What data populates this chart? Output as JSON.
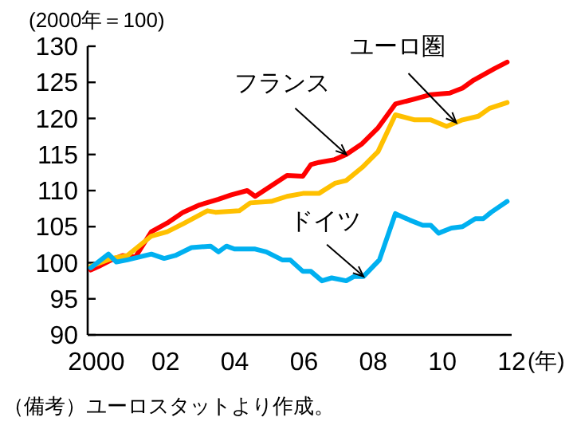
{
  "chart_data": {
    "type": "line",
    "ylabel": "(2000年＝100)",
    "xlabel": "(年)",
    "xlim": [
      1999.75,
      2012.0
    ],
    "xticks": [
      {
        "value": 2000,
        "label": "2000"
      },
      {
        "value": 2002,
        "label": "02"
      },
      {
        "value": 2004,
        "label": "04"
      },
      {
        "value": 2006,
        "label": "06"
      },
      {
        "value": 2008,
        "label": "08"
      },
      {
        "value": 2010,
        "label": "10"
      },
      {
        "value": 2012,
        "label": "12"
      }
    ],
    "ylim": [
      90,
      130
    ],
    "yticks": [
      90,
      95,
      100,
      105,
      110,
      115,
      120,
      125,
      130
    ],
    "grid": false,
    "series": [
      {
        "color": "#ff0000",
        "x": [
          1999.84,
          2000.07,
          2000.44,
          2000.76,
          2001.13,
          2001.59,
          2002.05,
          2002.51,
          2002.98,
          2003.53,
          2003.9,
          2004.36,
          2004.59,
          2005.51,
          2005.97,
          2006.2,
          2006.43,
          2006.89,
          2007.22,
          2007.68,
          2008.14,
          2008.64,
          2009.2,
          2009.66,
          2010.21,
          2010.58,
          2010.9,
          2011.5,
          2011.87
        ],
        "values": [
          99.0,
          99.5,
          100.4,
          101.0,
          100.8,
          104.3,
          105.5,
          107.0,
          108.0,
          108.8,
          109.4,
          110.0,
          109.2,
          112.1,
          112.0,
          113.6,
          113.9,
          114.3,
          115.0,
          116.5,
          118.7,
          122.0,
          122.7,
          123.3,
          123.5,
          124.2,
          125.3,
          126.9,
          127.8
        ]
      },
      {
        "color": "#ffc000",
        "x": [
          1999.84,
          2000.44,
          2000.9,
          2001.59,
          2002.05,
          2002.51,
          2003.21,
          2003.44,
          2004.13,
          2004.45,
          2005.05,
          2005.51,
          2005.97,
          2006.43,
          2006.89,
          2007.22,
          2007.68,
          2008.14,
          2008.64,
          2009.2,
          2009.66,
          2010.12,
          2010.58,
          2011.04,
          2011.36,
          2011.87
        ],
        "values": [
          99.5,
          100.6,
          101.0,
          103.7,
          104.3,
          105.4,
          107.2,
          107.0,
          107.2,
          108.3,
          108.5,
          109.2,
          109.6,
          109.6,
          111.0,
          111.4,
          113.2,
          115.4,
          120.5,
          119.8,
          119.8,
          118.9,
          119.8,
          120.3,
          121.4,
          122.2
        ]
      },
      {
        "color": "#00b0f0",
        "x": [
          1999.84,
          2000.35,
          2000.58,
          2000.9,
          2001.59,
          2001.96,
          2002.28,
          2002.75,
          2003.3,
          2003.53,
          2003.76,
          2003.99,
          2004.59,
          2004.91,
          2005.37,
          2005.6,
          2005.97,
          2006.2,
          2006.52,
          2006.8,
          2007.22,
          2007.45,
          2007.72,
          2008.18,
          2008.64,
          2009.06,
          2009.43,
          2009.66,
          2009.89,
          2010.26,
          2010.58,
          2010.95,
          2011.18,
          2011.41,
          2011.87
        ],
        "values": [
          99.3,
          101.2,
          100.1,
          100.4,
          101.2,
          100.6,
          101.0,
          102.1,
          102.3,
          101.5,
          102.3,
          101.9,
          101.9,
          101.5,
          100.4,
          100.4,
          98.8,
          98.8,
          97.5,
          97.9,
          97.5,
          98.1,
          98.1,
          100.4,
          106.8,
          105.9,
          105.2,
          105.2,
          104.1,
          104.8,
          105.0,
          106.1,
          106.1,
          107.0,
          108.5
        ]
      }
    ],
    "annotations": [
      {
        "text": "フランス",
        "x": 2007.22,
        "y": 115.0
      },
      {
        "text": "ユーロ圏",
        "x": 2010.4,
        "y": 119.4
      },
      {
        "text": "ドイツ",
        "x": 2007.72,
        "y": 98.1
      },
      "（備考）ユーロスタットより作成。"
    ]
  }
}
